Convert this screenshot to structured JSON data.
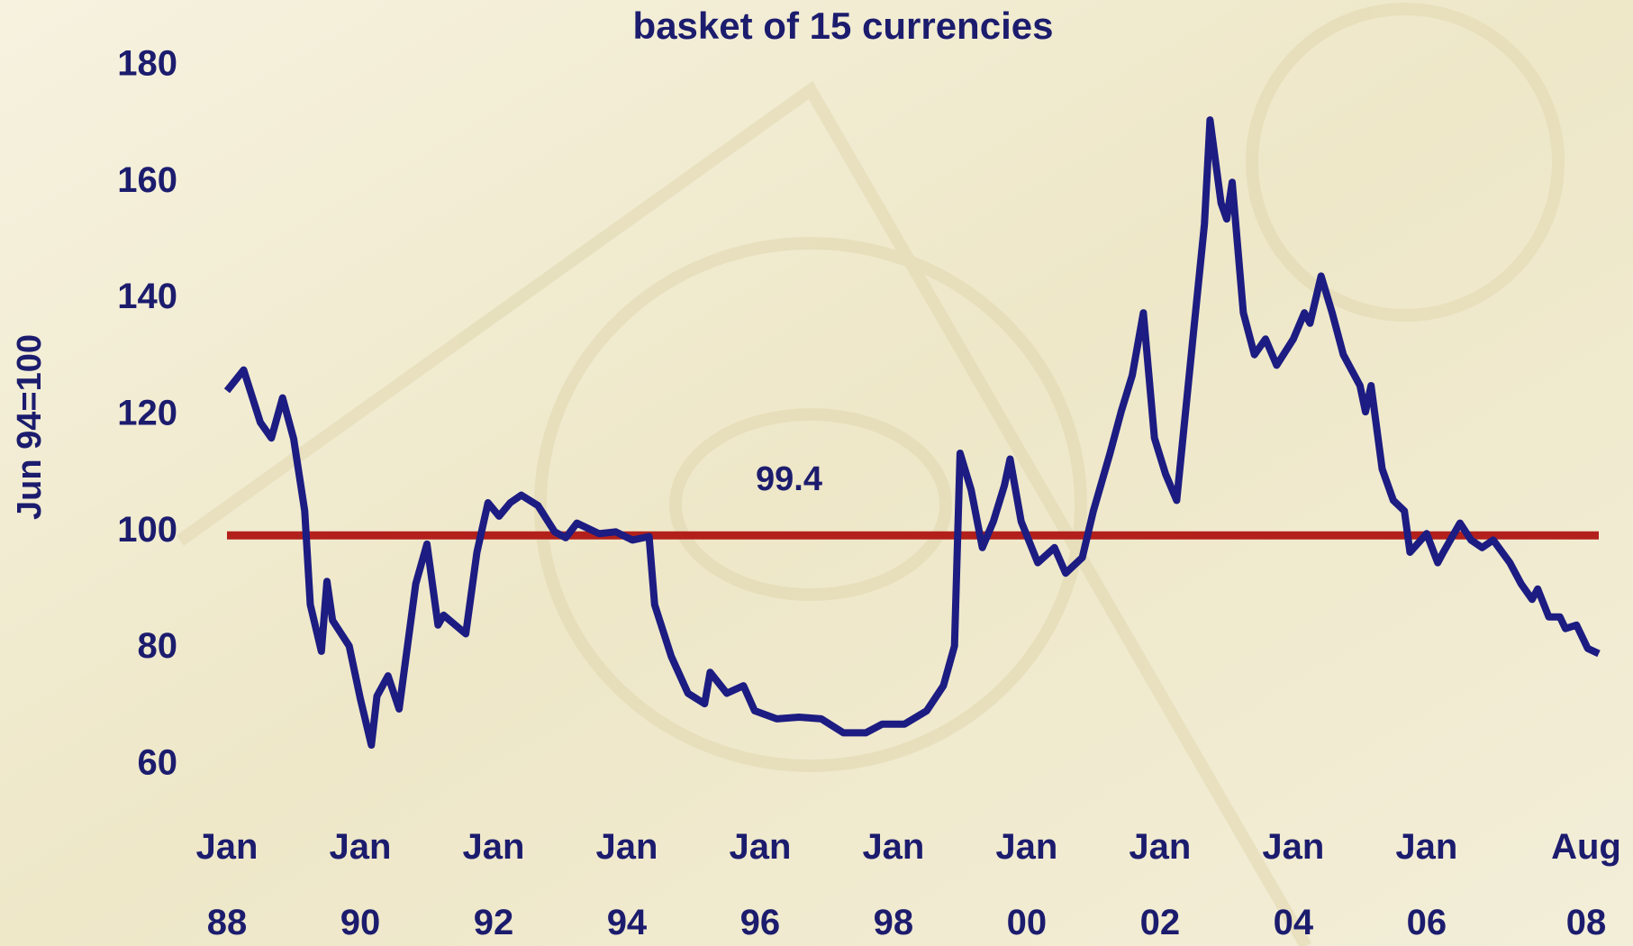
{
  "chart_data": {
    "type": "line",
    "title": "basket of 15 currencies",
    "y_label": "Jun 94=100",
    "x": [
      "1988-01",
      "1988-04",
      "1988-07",
      "1988-09",
      "1988-11",
      "1989-01",
      "1989-03",
      "1989-04",
      "1989-06",
      "1989-07",
      "1989-08",
      "1989-11",
      "1990-01",
      "1990-03",
      "1990-04",
      "1990-06",
      "1990-08",
      "1990-11",
      "1991-01",
      "1991-03",
      "1991-04",
      "1991-08",
      "1991-10",
      "1991-12",
      "1992-02",
      "1992-04",
      "1992-06",
      "1992-09",
      "1992-12",
      "1993-02",
      "1993-04",
      "1993-08",
      "1993-11",
      "1994-02",
      "1994-05",
      "1994-06",
      "1994-09",
      "1994-12",
      "1995-03",
      "1995-04",
      "1995-07",
      "1995-10",
      "1995-12",
      "1996-04",
      "1996-08",
      "1996-12",
      "1997-04",
      "1997-08",
      "1997-11",
      "1998-03",
      "1998-07",
      "1998-10",
      "1998-12",
      "1999-01",
      "1999-03",
      "1999-05",
      "1999-07",
      "1999-09",
      "1999-10",
      "1999-12",
      "2000-03",
      "2000-06",
      "2000-08",
      "2000-11",
      "2001-01",
      "2001-04",
      "2001-06",
      "2001-08",
      "2001-10",
      "2001-12",
      "2002-02",
      "2002-04",
      "2002-07",
      "2002-09",
      "2002-10",
      "2002-12",
      "2003-01",
      "2003-02",
      "2003-04",
      "2003-06",
      "2003-08",
      "2003-10",
      "2004-01",
      "2004-03",
      "2004-04",
      "2004-06",
      "2004-08",
      "2004-10",
      "2005-01",
      "2005-02",
      "2005-03",
      "2005-05",
      "2005-07",
      "2005-09",
      "2005-10",
      "2006-01",
      "2006-03",
      "2006-04",
      "2006-07",
      "2006-09",
      "2006-11",
      "2007-01",
      "2007-04",
      "2007-06",
      "2007-08",
      "2007-09",
      "2007-11",
      "2008-01",
      "2008-02",
      "2008-04",
      "2008-06",
      "2008-08"
    ],
    "series": [
      {
        "name": "basket of 15 currencies",
        "color": "#1c1c82",
        "values": [
          124.2,
          127.8,
          118.8,
          116.1,
          123,
          116,
          103.6,
          87.5,
          79.5,
          91.5,
          84.8,
          80.4,
          71.4,
          63.4,
          71.8,
          75.3,
          69.6,
          91.1,
          97.9,
          84,
          85.7,
          82.5,
          96.5,
          105,
          102.7,
          105,
          106.3,
          104.5,
          100,
          99,
          101.5,
          99.7,
          100,
          98.6,
          99.2,
          87.5,
          78.6,
          72.3,
          70.5,
          75.9,
          72.3,
          73.6,
          69.3,
          67.9,
          68.2,
          67.9,
          65.5,
          65.5,
          67,
          67,
          69.3,
          73.6,
          80.4,
          113.5,
          107.2,
          97.3,
          101.8,
          108,
          112.5,
          101.8,
          94.7,
          97.3,
          92.9,
          95.6,
          103.6,
          113.5,
          120.6,
          126.9,
          137.6,
          116.1,
          109.9,
          105.4,
          134,
          152.8,
          170.7,
          156.4,
          153.7,
          160,
          137.6,
          130.4,
          133.1,
          128.6,
          133.1,
          137.6,
          135.8,
          143.9,
          137.6,
          130.4,
          125.1,
          120.6,
          125.1,
          110.8,
          105.4,
          103.6,
          96.5,
          99.7,
          94.7,
          96.5,
          101.5,
          98.6,
          97.3,
          98.6,
          94.7,
          91.1,
          88.4,
          90.2,
          85.4,
          85.4,
          83.4,
          84,
          80,
          79.1
        ]
      }
    ],
    "reference_lines": [
      {
        "value": 99.4,
        "label": "99.4",
        "color": "#b3201c"
      }
    ],
    "xlim": [
      "1988-01",
      "2008-08"
    ],
    "xticks": [
      {
        "value": "1988-01",
        "label": "Jan 88"
      },
      {
        "value": "1990-01",
        "label": "Jan 90"
      },
      {
        "value": "1992-01",
        "label": "Jan 92"
      },
      {
        "value": "1994-01",
        "label": "Jan 94"
      },
      {
        "value": "1996-01",
        "label": "Jan 96"
      },
      {
        "value": "1998-01",
        "label": "Jan 98"
      },
      {
        "value": "2000-01",
        "label": "Jan 00"
      },
      {
        "value": "2002-01",
        "label": "Jan 02"
      },
      {
        "value": "2004-01",
        "label": "Jan 04"
      },
      {
        "value": "2006-01",
        "label": "Jan 06"
      },
      {
        "value": "2008-08",
        "label": "Aug 08"
      }
    ],
    "ylim": [
      60,
      180
    ],
    "yticks": [
      60,
      80,
      100,
      120,
      140,
      160,
      180
    ],
    "grid": false
  }
}
